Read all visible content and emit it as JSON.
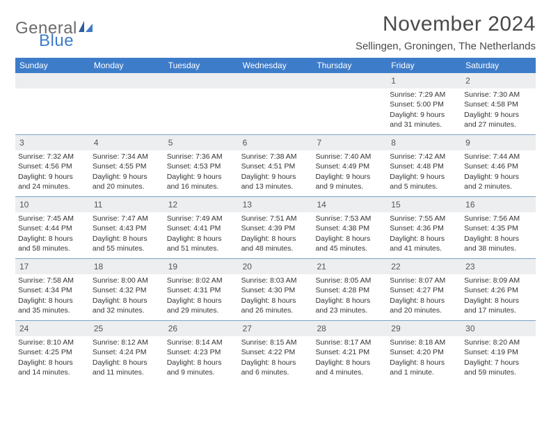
{
  "brand": {
    "general": "General",
    "blue": "Blue"
  },
  "title": "November 2024",
  "location": "Sellingen, Groningen, The Netherlands",
  "colors": {
    "header_bg": "#3d7cc9",
    "header_text": "#ffffff",
    "daynum_bg": "#eceeef",
    "week_border": "#7aa3c9",
    "text": "#333333",
    "title_text": "#4a4a4a",
    "logo_gray": "#6b6b6b",
    "logo_blue": "#3d7cc9",
    "page_bg": "#ffffff"
  },
  "fonts": {
    "title_size_pt": 22,
    "location_size_pt": 11,
    "weekday_size_pt": 9,
    "daynum_size_pt": 9,
    "body_size_pt": 8
  },
  "weekdays": [
    "Sunday",
    "Monday",
    "Tuesday",
    "Wednesday",
    "Thursday",
    "Friday",
    "Saturday"
  ],
  "weeks": [
    [
      {
        "n": "",
        "sunrise": "",
        "sunset": "",
        "daylight": ""
      },
      {
        "n": "",
        "sunrise": "",
        "sunset": "",
        "daylight": ""
      },
      {
        "n": "",
        "sunrise": "",
        "sunset": "",
        "daylight": ""
      },
      {
        "n": "",
        "sunrise": "",
        "sunset": "",
        "daylight": ""
      },
      {
        "n": "",
        "sunrise": "",
        "sunset": "",
        "daylight": ""
      },
      {
        "n": "1",
        "sunrise": "Sunrise: 7:29 AM",
        "sunset": "Sunset: 5:00 PM",
        "daylight": "Daylight: 9 hours and 31 minutes."
      },
      {
        "n": "2",
        "sunrise": "Sunrise: 7:30 AM",
        "sunset": "Sunset: 4:58 PM",
        "daylight": "Daylight: 9 hours and 27 minutes."
      }
    ],
    [
      {
        "n": "3",
        "sunrise": "Sunrise: 7:32 AM",
        "sunset": "Sunset: 4:56 PM",
        "daylight": "Daylight: 9 hours and 24 minutes."
      },
      {
        "n": "4",
        "sunrise": "Sunrise: 7:34 AM",
        "sunset": "Sunset: 4:55 PM",
        "daylight": "Daylight: 9 hours and 20 minutes."
      },
      {
        "n": "5",
        "sunrise": "Sunrise: 7:36 AM",
        "sunset": "Sunset: 4:53 PM",
        "daylight": "Daylight: 9 hours and 16 minutes."
      },
      {
        "n": "6",
        "sunrise": "Sunrise: 7:38 AM",
        "sunset": "Sunset: 4:51 PM",
        "daylight": "Daylight: 9 hours and 13 minutes."
      },
      {
        "n": "7",
        "sunrise": "Sunrise: 7:40 AM",
        "sunset": "Sunset: 4:49 PM",
        "daylight": "Daylight: 9 hours and 9 minutes."
      },
      {
        "n": "8",
        "sunrise": "Sunrise: 7:42 AM",
        "sunset": "Sunset: 4:48 PM",
        "daylight": "Daylight: 9 hours and 5 minutes."
      },
      {
        "n": "9",
        "sunrise": "Sunrise: 7:44 AM",
        "sunset": "Sunset: 4:46 PM",
        "daylight": "Daylight: 9 hours and 2 minutes."
      }
    ],
    [
      {
        "n": "10",
        "sunrise": "Sunrise: 7:45 AM",
        "sunset": "Sunset: 4:44 PM",
        "daylight": "Daylight: 8 hours and 58 minutes."
      },
      {
        "n": "11",
        "sunrise": "Sunrise: 7:47 AM",
        "sunset": "Sunset: 4:43 PM",
        "daylight": "Daylight: 8 hours and 55 minutes."
      },
      {
        "n": "12",
        "sunrise": "Sunrise: 7:49 AM",
        "sunset": "Sunset: 4:41 PM",
        "daylight": "Daylight: 8 hours and 51 minutes."
      },
      {
        "n": "13",
        "sunrise": "Sunrise: 7:51 AM",
        "sunset": "Sunset: 4:39 PM",
        "daylight": "Daylight: 8 hours and 48 minutes."
      },
      {
        "n": "14",
        "sunrise": "Sunrise: 7:53 AM",
        "sunset": "Sunset: 4:38 PM",
        "daylight": "Daylight: 8 hours and 45 minutes."
      },
      {
        "n": "15",
        "sunrise": "Sunrise: 7:55 AM",
        "sunset": "Sunset: 4:36 PM",
        "daylight": "Daylight: 8 hours and 41 minutes."
      },
      {
        "n": "16",
        "sunrise": "Sunrise: 7:56 AM",
        "sunset": "Sunset: 4:35 PM",
        "daylight": "Daylight: 8 hours and 38 minutes."
      }
    ],
    [
      {
        "n": "17",
        "sunrise": "Sunrise: 7:58 AM",
        "sunset": "Sunset: 4:34 PM",
        "daylight": "Daylight: 8 hours and 35 minutes."
      },
      {
        "n": "18",
        "sunrise": "Sunrise: 8:00 AM",
        "sunset": "Sunset: 4:32 PM",
        "daylight": "Daylight: 8 hours and 32 minutes."
      },
      {
        "n": "19",
        "sunrise": "Sunrise: 8:02 AM",
        "sunset": "Sunset: 4:31 PM",
        "daylight": "Daylight: 8 hours and 29 minutes."
      },
      {
        "n": "20",
        "sunrise": "Sunrise: 8:03 AM",
        "sunset": "Sunset: 4:30 PM",
        "daylight": "Daylight: 8 hours and 26 minutes."
      },
      {
        "n": "21",
        "sunrise": "Sunrise: 8:05 AM",
        "sunset": "Sunset: 4:28 PM",
        "daylight": "Daylight: 8 hours and 23 minutes."
      },
      {
        "n": "22",
        "sunrise": "Sunrise: 8:07 AM",
        "sunset": "Sunset: 4:27 PM",
        "daylight": "Daylight: 8 hours and 20 minutes."
      },
      {
        "n": "23",
        "sunrise": "Sunrise: 8:09 AM",
        "sunset": "Sunset: 4:26 PM",
        "daylight": "Daylight: 8 hours and 17 minutes."
      }
    ],
    [
      {
        "n": "24",
        "sunrise": "Sunrise: 8:10 AM",
        "sunset": "Sunset: 4:25 PM",
        "daylight": "Daylight: 8 hours and 14 minutes."
      },
      {
        "n": "25",
        "sunrise": "Sunrise: 8:12 AM",
        "sunset": "Sunset: 4:24 PM",
        "daylight": "Daylight: 8 hours and 11 minutes."
      },
      {
        "n": "26",
        "sunrise": "Sunrise: 8:14 AM",
        "sunset": "Sunset: 4:23 PM",
        "daylight": "Daylight: 8 hours and 9 minutes."
      },
      {
        "n": "27",
        "sunrise": "Sunrise: 8:15 AM",
        "sunset": "Sunset: 4:22 PM",
        "daylight": "Daylight: 8 hours and 6 minutes."
      },
      {
        "n": "28",
        "sunrise": "Sunrise: 8:17 AM",
        "sunset": "Sunset: 4:21 PM",
        "daylight": "Daylight: 8 hours and 4 minutes."
      },
      {
        "n": "29",
        "sunrise": "Sunrise: 8:18 AM",
        "sunset": "Sunset: 4:20 PM",
        "daylight": "Daylight: 8 hours and 1 minute."
      },
      {
        "n": "30",
        "sunrise": "Sunrise: 8:20 AM",
        "sunset": "Sunset: 4:19 PM",
        "daylight": "Daylight: 7 hours and 59 minutes."
      }
    ]
  ]
}
